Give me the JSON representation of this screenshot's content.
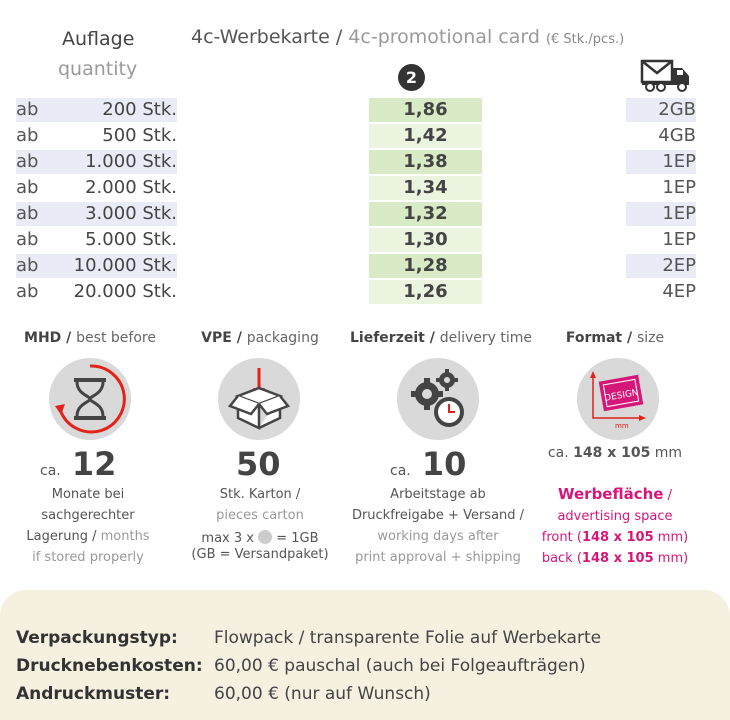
{
  "header": {
    "auflage": "Auflage",
    "quantity": "quantity",
    "card_de": "4c-Werbekarte /",
    "card_en": "4c-promotional card",
    "unit": "(€ Stk./pcs.)",
    "badge": "2"
  },
  "rows": [
    {
      "prefix": "ab",
      "qty": "200 Stk.",
      "price": "1,86",
      "ship": "2GB"
    },
    {
      "prefix": "ab",
      "qty": "500 Stk.",
      "price": "1,42",
      "ship": "4GB"
    },
    {
      "prefix": "ab",
      "qty": "1.000 Stk.",
      "price": "1,38",
      "ship": "1EP"
    },
    {
      "prefix": "ab",
      "qty": "2.000 Stk.",
      "price": "1,34",
      "ship": "1EP"
    },
    {
      "prefix": "ab",
      "qty": "3.000 Stk.",
      "price": "1,32",
      "ship": "1EP"
    },
    {
      "prefix": "ab",
      "qty": "5.000 Stk.",
      "price": "1,30",
      "ship": "1EP"
    },
    {
      "prefix": "ab",
      "qty": "10.000 Stk.",
      "price": "1,28",
      "ship": "2EP"
    },
    {
      "prefix": "ab",
      "qty": "20.000 Stk.",
      "price": "1,26",
      "ship": "4EP"
    }
  ],
  "mhd": {
    "title_b": "MHD /",
    "title_t": "best before",
    "ca": "ca.",
    "num": "12",
    "l1": "Monate bei",
    "l2": "sachgerechter",
    "l3a": "Lagerung /",
    "l3b": "months",
    "l4": "if stored properly"
  },
  "vpe": {
    "title_b": "VPE /",
    "title_t": "packaging",
    "num": "50",
    "l1": "Stk. Karton /",
    "l2": "pieces carton",
    "l3a": "max 3 x",
    "l3b": "= 1GB",
    "l4": "(GB = Versandpaket)"
  },
  "lieferzeit": {
    "title_b": "Lieferzeit /",
    "title_t": "delivery time",
    "ca": "ca.",
    "num": "10",
    "l1": "Arbeitstage ab",
    "l2": "Druckfreigabe + Versand /",
    "l3": "working days after",
    "l4": "print approval + shipping"
  },
  "format": {
    "title_b": "Format /",
    "title_t": "size",
    "icon_text": "DESIGN",
    "icon_mm": "mm",
    "ca": "ca.",
    "size_b": "148 x 105",
    "size_unit": "mm",
    "l1a": "Werbefläche",
    "l1b": "/",
    "l2": "advertising space",
    "l3a": "front (",
    "l3b": "148 x 105",
    "l3c": "mm)",
    "l4a": "back (",
    "l4b": "148 x 105",
    "l4c": "mm)"
  },
  "footer": [
    {
      "label": "Verpackungstyp:",
      "value": "Flowpack / transparente Folie auf Werbekarte"
    },
    {
      "label": "Drucknebenkosten:",
      "value": "60,00 € pauschal (auch bei Folgeaufträgen)"
    },
    {
      "label": "Andruckmuster:",
      "value": "60,00 € (nur auf Wunsch)"
    }
  ],
  "colors": {
    "accent": "#d6177a",
    "price_bg": "#d9ebc6",
    "row_bg": "#e9ecf6",
    "footer_bg": "#f6f0e0"
  }
}
